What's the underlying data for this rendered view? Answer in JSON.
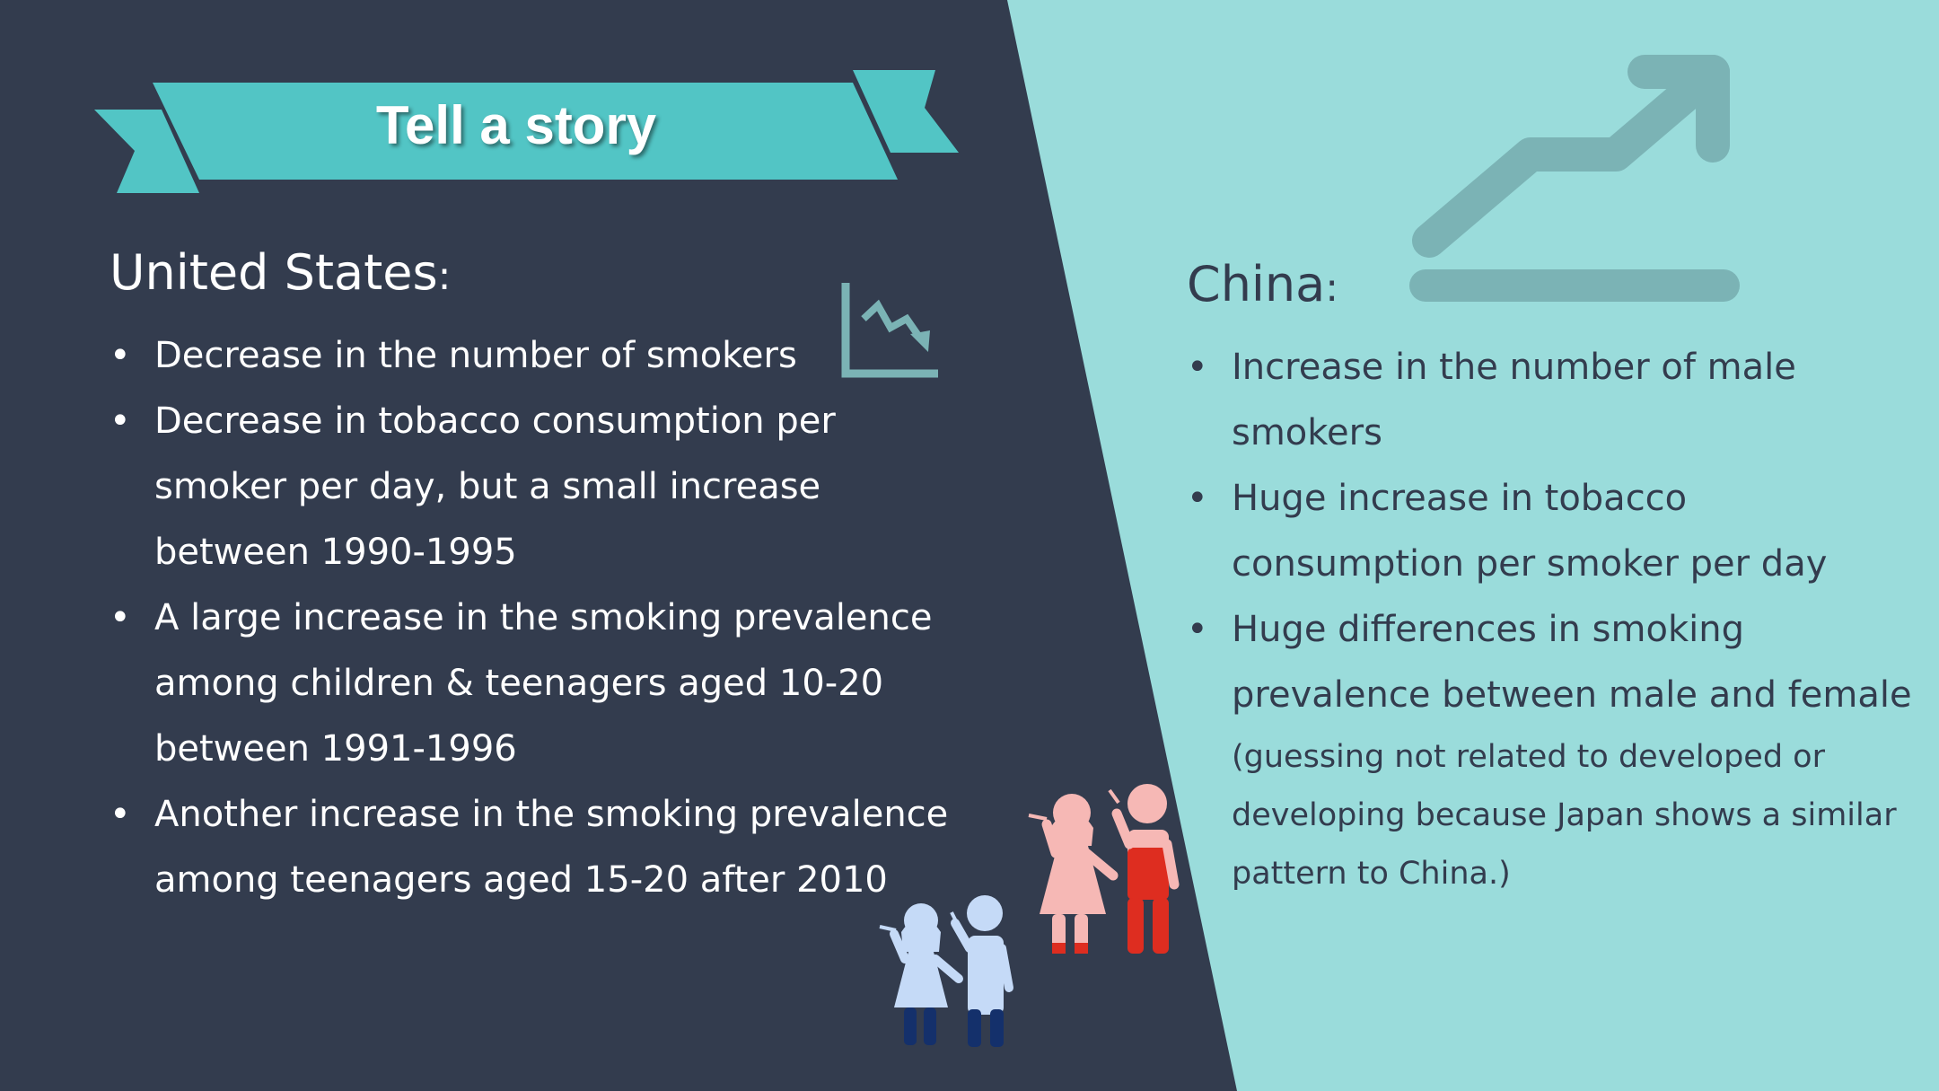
{
  "slide": {
    "banner_title": "Tell a story",
    "colors": {
      "dark_panel": "#333c4e",
      "light_panel": "#9adcdb",
      "banner": "#52c5c5",
      "icon_teal": "#7bb3b5",
      "figure_light": "#c5daf7",
      "figure_pink": "#f6b8b5",
      "figure_red": "#de2d20",
      "figure_navy": "#14306b"
    },
    "left": {
      "heading": "United States",
      "heading_colon": ":",
      "icon": "declining-chart-icon",
      "bullets": [
        "Decrease in the number of smokers",
        "Decrease  in tobacco consumption per smoker per day, but a small increase between 1990-1995",
        "A large increase in the smoking prevalence among children & teenagers aged 10-20 between 1991-1996",
        "Another increase in the smoking prevalence among teenagers aged 15-20 after 2010"
      ]
    },
    "right": {
      "heading": "China",
      "heading_colon": ":",
      "icon": "rising-arrow-icon",
      "bullets": [
        "Increase in the number of male smokers",
        "Huge increase in tobacco consumption per smoker per day",
        "Huge differences in smoking prevalence between male and female"
      ],
      "note": "(guessing not related to developed or developing because Japan shows a similar pattern to China.)"
    },
    "illustration": "smoking-figures-icon"
  }
}
